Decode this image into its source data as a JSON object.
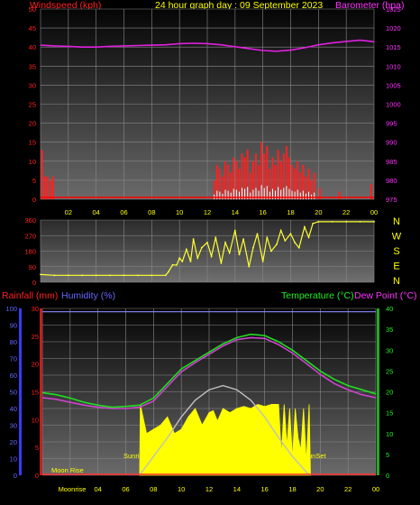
{
  "header": {
    "left_label": "Windspeed (kph)",
    "title": "24 hour graph day : 09 September 2023",
    "right_label": "Barometer (hpa)"
  },
  "colors": {
    "windspeed": "#ff0000",
    "gust_bars": "#ff2020",
    "wind_avg": "#00cc00",
    "wind_light": "#ffffff",
    "barometer": "#e020e0",
    "wind_dir": "#ffff33",
    "temperature": "#22dd22",
    "dewpoint": "#cc44cc",
    "humidity": "#8888ff",
    "rainfall": "#ff3030",
    "solar": "#ffff00",
    "sun_curve": "#c0c0c0",
    "title": "#ffff00",
    "axis_red": "#ff2020",
    "axis_magenta": "#ff33ff",
    "axis_green": "#22ee22",
    "axis_blue": "#6666ff"
  },
  "x_ticks": [
    "02",
    "04",
    "06",
    "08",
    "10",
    "12",
    "14",
    "16",
    "18",
    "20",
    "22",
    "00"
  ],
  "bottom_x_ticks": [
    "Moonrise",
    "04",
    "06",
    "08",
    "10",
    "12",
    "14",
    "16",
    "18",
    "20",
    "22",
    "00"
  ],
  "chart_data": [
    {
      "type": "line",
      "name": "wind-barometer",
      "x_unit": "hour",
      "xlim": [
        0,
        24
      ],
      "left_axis": {
        "label": "Windspeed (kph)",
        "ylim": [
          0,
          50
        ],
        "ticks": [
          0,
          5,
          10,
          15,
          20,
          25,
          30,
          35,
          40,
          45,
          50
        ]
      },
      "right_axis": {
        "label": "Barometer (hpa)",
        "ylim": [
          975,
          1025
        ],
        "ticks": [
          975,
          980,
          985,
          990,
          995,
          1000,
          1005,
          1010,
          1015,
          1020,
          1025
        ]
      },
      "series": [
        {
          "name": "Barometer (hpa)",
          "axis": "right",
          "x": [
            0,
            1,
            2,
            3,
            4,
            5,
            6,
            7,
            8,
            9,
            10,
            11,
            12,
            13,
            14,
            15,
            16,
            17,
            18,
            19,
            20,
            21,
            22,
            23,
            24
          ],
          "y": [
            1015.5,
            1015.3,
            1015.2,
            1015.0,
            1015.0,
            1015.2,
            1015.3,
            1015.4,
            1015.5,
            1015.6,
            1015.9,
            1016.0,
            1015.9,
            1015.6,
            1015.1,
            1014.6,
            1014.1,
            1013.9,
            1014.2,
            1014.8,
            1015.6,
            1016.1,
            1016.5,
            1016.8,
            1016.4
          ]
        },
        {
          "name": "Windspeed (kph)",
          "axis": "left",
          "style": "bars",
          "x": [
            0.1,
            0.3,
            0.5,
            0.7,
            0.9,
            12.5,
            12.7,
            12.9,
            13.1,
            13.3,
            13.5,
            13.7,
            13.9,
            14.1,
            14.3,
            14.5,
            14.7,
            14.9,
            15.1,
            15.3,
            15.5,
            15.7,
            15.9,
            16.1,
            16.3,
            16.5,
            16.7,
            16.9,
            17.1,
            17.3,
            17.5,
            17.7,
            17.9,
            18.1,
            18.3,
            18.5,
            18.7,
            18.9,
            19.1,
            19.3,
            19.5,
            19.7,
            20.1,
            21.5,
            23.8
          ],
          "y": [
            13,
            6,
            6,
            5,
            6,
            5,
            9,
            8,
            6,
            10,
            9,
            7,
            11,
            10,
            8,
            12,
            11,
            13,
            7,
            10,
            12,
            9,
            15,
            12,
            14,
            8,
            11,
            9,
            13,
            10,
            12,
            14,
            11,
            9,
            8,
            10,
            7,
            9,
            6,
            8,
            5,
            7,
            3,
            2,
            4
          ]
        }
      ]
    },
    {
      "type": "scatter",
      "name": "wind-direction",
      "x_unit": "hour",
      "xlim": [
        0,
        24
      ],
      "ylim": [
        0,
        360
      ],
      "left_ticks": [
        0,
        90,
        180,
        270,
        360
      ],
      "right_labels": [
        "N",
        "W",
        "S",
        "E",
        "N"
      ],
      "series": [
        {
          "name": "Wind Direction",
          "x": [
            0,
            1,
            2,
            3,
            4,
            5,
            6,
            7,
            8,
            9,
            9.2,
            9.5,
            9.8,
            10,
            10.2,
            10.5,
            10.8,
            11,
            11.3,
            11.6,
            12,
            12.3,
            12.6,
            13,
            13.3,
            13.6,
            14,
            14.3,
            14.6,
            15,
            15.3,
            15.6,
            16,
            16.3,
            16.6,
            17,
            17.3,
            17.6,
            18,
            18.3,
            18.6,
            19,
            19.3,
            19.6,
            20,
            21,
            22,
            23,
            24
          ],
          "y": [
            45,
            40,
            40,
            40,
            40,
            40,
            40,
            40,
            40,
            40,
            60,
            100,
            100,
            140,
            120,
            190,
            120,
            250,
            140,
            200,
            230,
            150,
            260,
            110,
            230,
            170,
            300,
            160,
            250,
            90,
            200,
            280,
            120,
            260,
            180,
            220,
            300,
            240,
            280,
            230,
            200,
            320,
            260,
            340,
            350,
            350,
            350,
            350,
            350
          ]
        }
      ]
    },
    {
      "type": "line",
      "name": "temperature-humidity",
      "x_unit": "hour",
      "xlim": [
        0,
        24
      ],
      "left_labels": [
        "Rainfall (mm)",
        "Humidity (%)"
      ],
      "right_labels": [
        "Temperature (°C)",
        "Dew Point (°C)"
      ],
      "rain_axis": {
        "ylim": [
          0,
          30
        ],
        "ticks": [
          0,
          5,
          10,
          15,
          20,
          25,
          30
        ]
      },
      "humidity_axis": {
        "ylim": [
          0,
          100
        ],
        "ticks": [
          0,
          10,
          20,
          30,
          40,
          50,
          60,
          70,
          80,
          90,
          100
        ]
      },
      "temp_axis": {
        "ylim": [
          0,
          40
        ],
        "ticks": [
          0,
          5,
          10,
          15,
          20,
          25,
          30,
          35,
          40
        ]
      },
      "annotations": {
        "moon_rise": "Moon Rise",
        "sunrise": "Sunrise",
        "sunset": "SunSet"
      },
      "series": [
        {
          "name": "Temperature (°C)",
          "axis": "temp",
          "x": [
            0,
            1,
            2,
            3,
            4,
            5,
            6,
            7,
            8,
            9,
            10,
            11,
            12,
            13,
            14,
            15,
            16,
            17,
            18,
            19,
            20,
            21,
            22,
            23,
            24
          ],
          "y": [
            19.8,
            19.3,
            18.5,
            17.5,
            16.8,
            16.3,
            16.5,
            16.8,
            18.5,
            22,
            25.5,
            27.5,
            29.5,
            31.5,
            33,
            33.8,
            33.5,
            32,
            30,
            27.5,
            25,
            23,
            21.5,
            20.5,
            19.5
          ]
        },
        {
          "name": "Dew Point (°C)",
          "axis": "temp",
          "x": [
            0,
            1,
            2,
            3,
            4,
            5,
            6,
            7,
            8,
            9,
            10,
            11,
            12,
            13,
            14,
            15,
            16,
            17,
            18,
            19,
            20,
            21,
            22,
            23,
            24
          ],
          "y": [
            18.6,
            18.2,
            17.5,
            16.8,
            16.3,
            16,
            16,
            16.3,
            17.8,
            21.3,
            24.8,
            27,
            29,
            31,
            32.5,
            33,
            32.8,
            31.3,
            29.3,
            26.8,
            24.2,
            22,
            20.5,
            19.3,
            18.6
          ]
        },
        {
          "name": "Humidity (%)",
          "axis": "humidity",
          "x": [
            0,
            24
          ],
          "y": [
            98,
            98
          ]
        },
        {
          "name": "Rainfall (mm)",
          "axis": "rain",
          "x": [
            0,
            24
          ],
          "y": [
            0,
            0
          ]
        },
        {
          "name": "Solar radiation",
          "axis": "temp",
          "style": "area",
          "x": [
            7.0,
            7.05,
            7.5,
            8,
            8.5,
            9,
            9.5,
            10,
            10.5,
            11,
            11.5,
            12,
            12.3,
            12.6,
            13,
            13.5,
            14,
            14.5,
            15,
            15.5,
            16,
            16.5,
            17,
            17.2,
            17.4,
            17.6,
            17.8,
            18,
            18.2,
            18.4,
            18.6,
            18.8,
            19.0,
            19.2,
            19.3
          ],
          "y": [
            0,
            17,
            10,
            11,
            12,
            14,
            10,
            11,
            14,
            16,
            12,
            15,
            15.5,
            13,
            16,
            15,
            16,
            16.5,
            16,
            17,
            16.5,
            17,
            17,
            5,
            17,
            7,
            16,
            4,
            16,
            9,
            6,
            16,
            3,
            17,
            0
          ]
        },
        {
          "name": "Sun elevation",
          "axis": "temp",
          "style": "curve",
          "x": [
            7,
            8,
            9,
            10,
            11,
            12,
            13,
            14,
            15,
            16,
            17,
            18,
            19.2
          ],
          "y": [
            0,
            4.5,
            9,
            14,
            18,
            20.5,
            21.5,
            20.5,
            18,
            14,
            9,
            4.5,
            0
          ]
        }
      ]
    }
  ]
}
